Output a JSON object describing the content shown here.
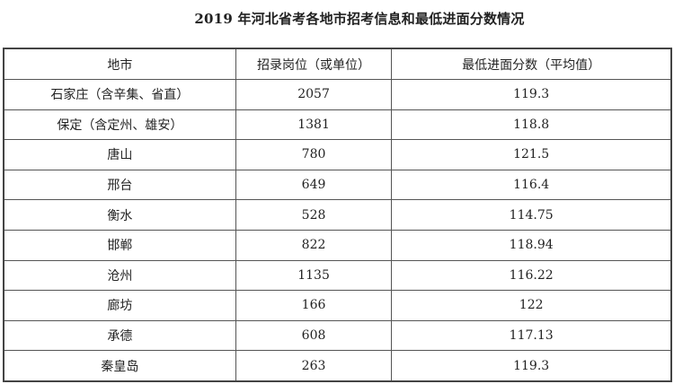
{
  "title": "2019 年河北省考各地市招考信息和最低进面分数情况",
  "table": {
    "headers": [
      "地市",
      "招录岗位（或单位）",
      "最低进面分数（平均值）"
    ],
    "rows": [
      [
        "石家庄（含辛集、省直）",
        "2057",
        "119.3"
      ],
      [
        "保定（含定州、雄安）",
        "1381",
        "118.8"
      ],
      [
        "唐山",
        "780",
        "121.5"
      ],
      [
        "邢台",
        "649",
        "116.4"
      ],
      [
        "衡水",
        "528",
        "114.75"
      ],
      [
        "邯郸",
        "822",
        "118.94"
      ],
      [
        "沧州",
        "1135",
        "116.22"
      ],
      [
        "廊坊",
        "166",
        "122"
      ],
      [
        "承德",
        "608",
        "117.13"
      ],
      [
        "秦皇岛",
        "263",
        "119.3"
      ]
    ]
  }
}
